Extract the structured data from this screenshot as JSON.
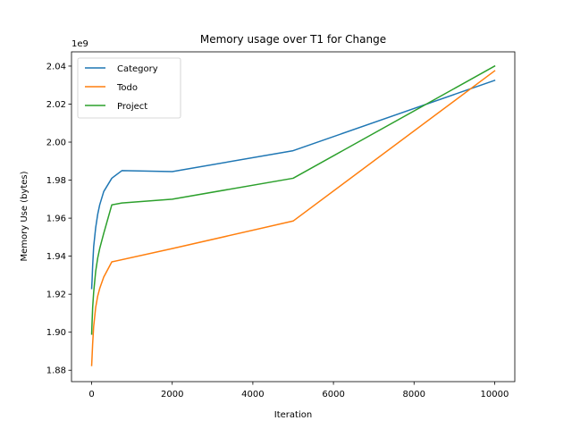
{
  "chart_data": {
    "type": "line",
    "title": "Memory usage over T1 for Change",
    "xlabel": "Iteration",
    "ylabel": "Memory Use (bytes)",
    "y_offset_label": "1e9",
    "y_scale_factor": 1000000000,
    "xlim": [
      -500,
      10500
    ],
    "ylim": [
      1.874,
      2.0475
    ],
    "x_ticks": [
      0,
      2000,
      4000,
      6000,
      8000,
      10000
    ],
    "x_tick_labels": [
      "0",
      "2000",
      "4000",
      "6000",
      "8000",
      "10000"
    ],
    "y_ticks": [
      1.88,
      1.9,
      1.92,
      1.94,
      1.96,
      1.98,
      2.0,
      2.02,
      2.04
    ],
    "y_tick_labels": [
      "1.88",
      "1.90",
      "1.92",
      "1.94",
      "1.96",
      "1.98",
      "2.00",
      "2.02",
      "2.04"
    ],
    "grid": false,
    "legend_position": "top-left",
    "series": [
      {
        "name": "Category",
        "color": "#1f77b4",
        "x": [
          0,
          10,
          25,
          50,
          100,
          150,
          200,
          300,
          500,
          750,
          2000,
          5000,
          10000
        ],
        "y": [
          1.923,
          1.927,
          1.935,
          1.945,
          1.955,
          1.962,
          1.967,
          1.974,
          1.981,
          1.985,
          1.9845,
          1.9955,
          2.0325
        ]
      },
      {
        "name": "Todo",
        "color": "#ff7f0e",
        "x": [
          0,
          10,
          25,
          50,
          100,
          150,
          200,
          300,
          500,
          2000,
          5000,
          10000
        ],
        "y": [
          1.8825,
          1.887,
          1.894,
          1.903,
          1.913,
          1.919,
          1.923,
          1.929,
          1.937,
          1.944,
          1.9585,
          2.0375
        ]
      },
      {
        "name": "Project",
        "color": "#2ca02c",
        "x": [
          0,
          10,
          25,
          50,
          100,
          150,
          200,
          300,
          500,
          750,
          2000,
          5000,
          10000
        ],
        "y": [
          1.899,
          1.905,
          1.913,
          1.921,
          1.932,
          1.939,
          1.944,
          1.952,
          1.967,
          1.968,
          1.97,
          1.981,
          2.04
        ]
      }
    ]
  }
}
